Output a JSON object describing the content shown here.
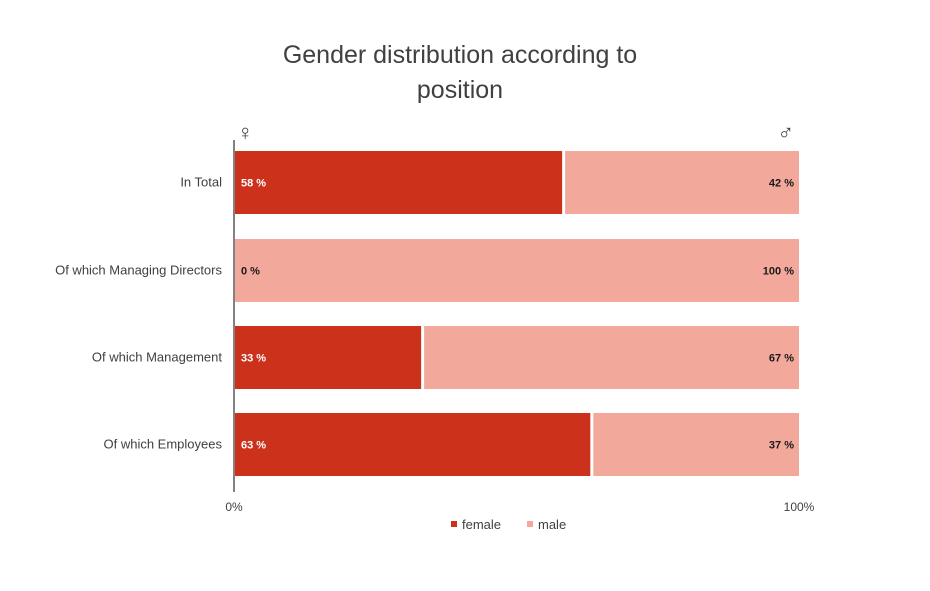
{
  "chart_data": {
    "type": "bar",
    "orientation": "horizontal",
    "stacked": true,
    "title_line1": "Gender distribution according to",
    "title_line2": "position",
    "categories": [
      "In Total",
      "Of which Managing Directors",
      "Of which Management",
      "Of which Employees"
    ],
    "series": [
      {
        "name": "female",
        "values": [
          58,
          0,
          33,
          63
        ],
        "labels": [
          "58 %",
          "0 %",
          "33 %",
          "63 %"
        ]
      },
      {
        "name": "male",
        "values": [
          42,
          100,
          67,
          37
        ],
        "labels": [
          "42 %",
          "100 %",
          "67 %",
          "37 %"
        ]
      }
    ],
    "xlim": [
      0,
      100
    ],
    "x_tick_labels": [
      "0%",
      "100%"
    ],
    "left_symbol": "♀",
    "right_symbol": "♂",
    "legend_position": "bottom",
    "grid": false
  },
  "colors": {
    "female": "#cc311c",
    "male": "#f2a99b",
    "female_label": "#ffffff",
    "male_label": "#1a1a1a",
    "axis": "#595959"
  }
}
